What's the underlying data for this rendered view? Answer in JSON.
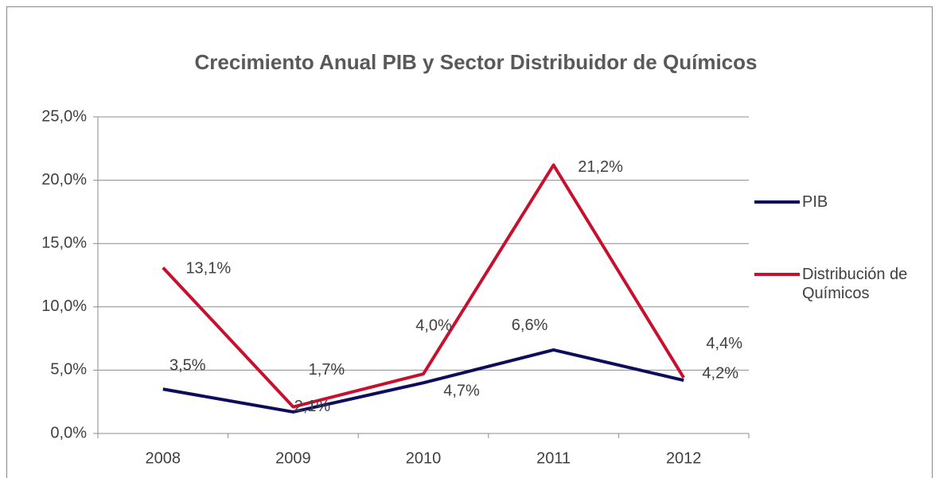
{
  "chart_data": {
    "type": "line",
    "title": "Crecimiento Anual PIB y Sector Distribuidor de Químicos",
    "categories": [
      "2008",
      "2009",
      "2010",
      "2011",
      "2012"
    ],
    "series": [
      {
        "name": "PIB",
        "color": "#0d0d5c",
        "values": [
          3.5,
          1.7,
          4.0,
          6.6,
          4.2
        ],
        "value_labels": [
          "3,5%",
          "1,7%",
          "4,0%",
          "6,6%",
          "4,2%"
        ]
      },
      {
        "name": "Distribución de Químicos",
        "color": "#c8102e",
        "values": [
          13.1,
          2.1,
          4.7,
          21.2,
          4.4
        ],
        "value_labels": [
          "13,1%",
          "2,1%",
          "4,7%",
          "21,2%",
          "4,4%"
        ]
      }
    ],
    "ylim": [
      0,
      25
    ],
    "yticks": [
      {
        "value": 0,
        "label": "0,0%"
      },
      {
        "value": 5,
        "label": "5,0%"
      },
      {
        "value": 10,
        "label": "10,0%"
      },
      {
        "value": 15,
        "label": "15,0%"
      },
      {
        "value": 20,
        "label": "20,0%"
      },
      {
        "value": 25,
        "label": "25,0%"
      }
    ],
    "grid": true,
    "legend": "right"
  }
}
